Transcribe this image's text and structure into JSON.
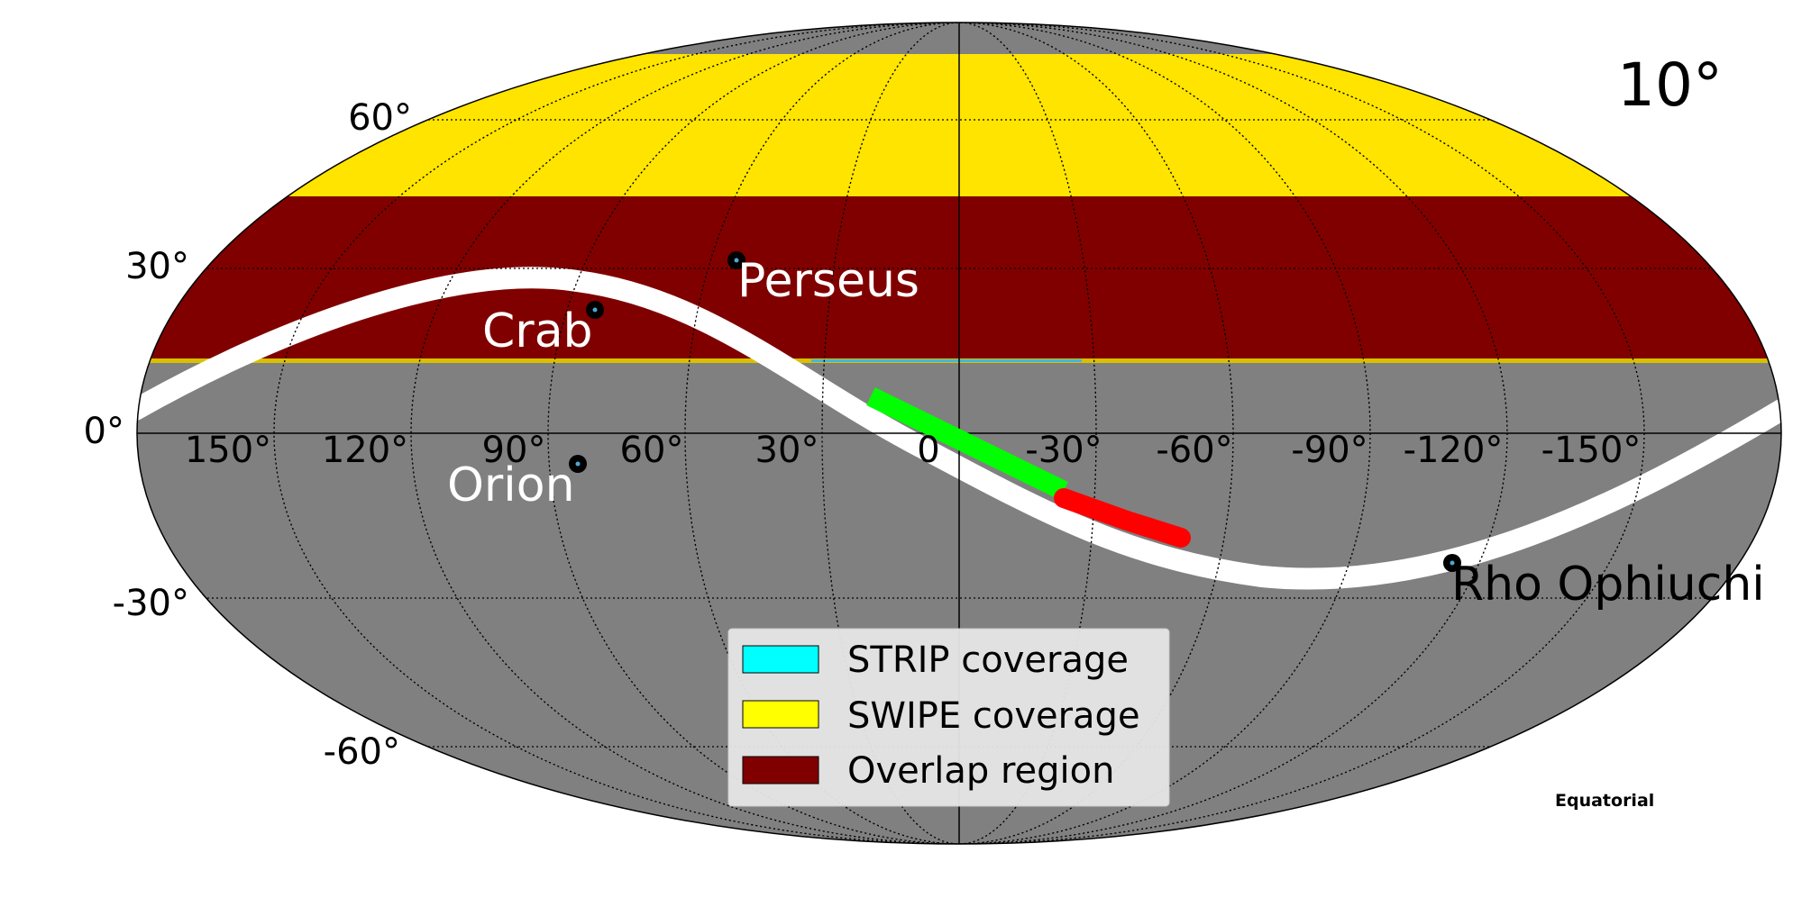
{
  "map": {
    "corner_label": "10°",
    "coordinate_system": "Equatorial",
    "projection": "mollweide",
    "colors": {
      "background_sky": "#808080",
      "swipe_only": "#FFE400",
      "overlap": "#800000",
      "strip": "#00FFFF",
      "galactic_plane": "#FFFFFF",
      "track_green": "#00FF00",
      "track_red": "#FF0000",
      "source_marker": "#000000"
    }
  },
  "lat_labels": [
    "60°",
    "30°",
    "0°",
    "-30°",
    "-60°"
  ],
  "lon_labels": [
    "150°",
    "120°",
    "90°",
    "60°",
    "30°",
    "0",
    "-30°",
    "-60°",
    "-90°",
    "-120°",
    "-150°"
  ],
  "sources": [
    {
      "name": "Perseus",
      "ra_deg": 50,
      "dec_deg": 41,
      "label_color": "#FFFFFF"
    },
    {
      "name": "Crab",
      "ra_deg": 83.6,
      "dec_deg": 22,
      "label_color": "#FFFFFF"
    },
    {
      "name": "Orion",
      "ra_deg": 85,
      "dec_deg": -5,
      "label_color": "#FFFFFF"
    },
    {
      "name": "Rho Ophiuchi",
      "ra_deg": -113,
      "dec_deg": -24,
      "label_color": "#000000"
    }
  ],
  "legend": {
    "items": [
      {
        "label": "STRIP coverage",
        "color": "#00FFFF"
      },
      {
        "label": "SWIPE coverage",
        "color": "#FFFF00"
      },
      {
        "label": "Overlap region",
        "color": "#800000"
      }
    ]
  },
  "coverage": {
    "strip_dec_range": [
      -90,
      15
    ],
    "swipe_dec_range": [
      15,
      81
    ],
    "overlap_dec_range": [
      15,
      35
    ],
    "note_visible": ""
  },
  "tracks": [
    {
      "color": "#00FF00",
      "from": {
        "ra_deg": 10,
        "dec_deg": 3
      },
      "to": {
        "ra_deg": -12,
        "dec_deg": -9
      }
    },
    {
      "color": "#FF0000",
      "from": {
        "ra_deg": -12,
        "dec_deg": -9
      },
      "to": {
        "ra_deg": -29,
        "dec_deg": -16
      }
    }
  ]
}
